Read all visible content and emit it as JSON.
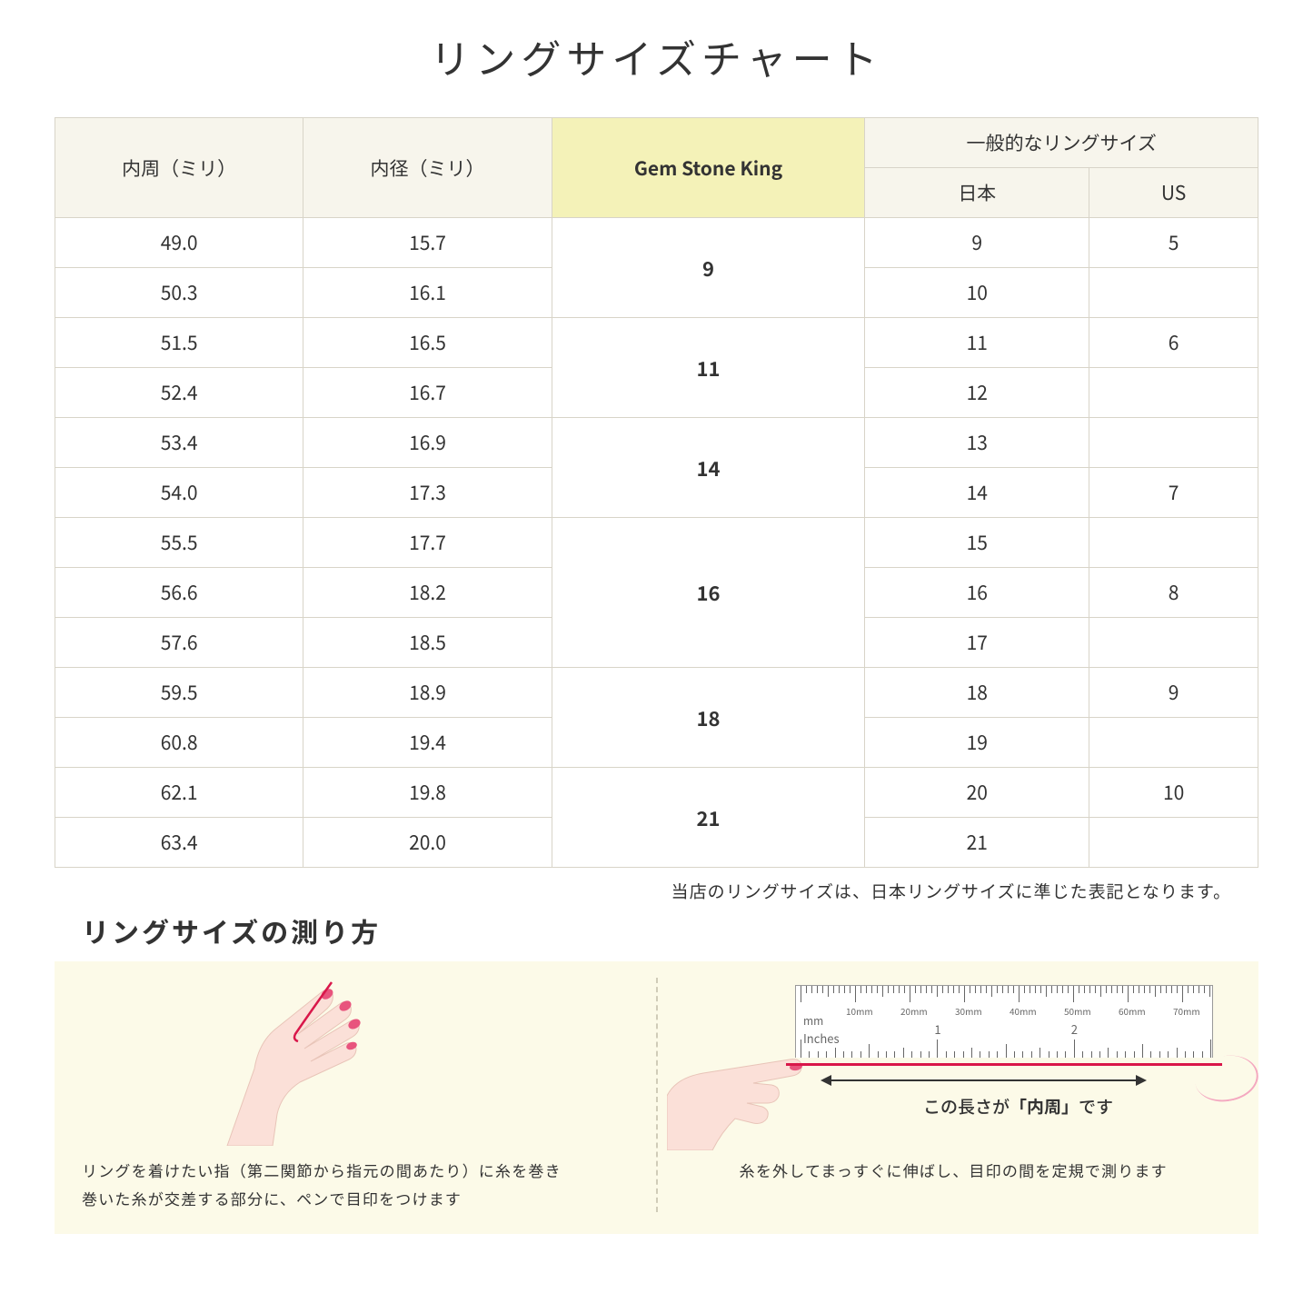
{
  "title": "リングサイズチャート",
  "table": {
    "headers": {
      "circumference": "内周（ミリ）",
      "diameter": "内径（ミリ）",
      "gsk": "Gem Stone King",
      "general": "一般的なリングサイズ",
      "jp": "日本",
      "us": "US"
    },
    "groups": [
      {
        "gsk": "9",
        "rows": [
          {
            "c": "49.0",
            "d": "15.7",
            "jp": "9",
            "us": "5"
          },
          {
            "c": "50.3",
            "d": "16.1",
            "jp": "10",
            "us": ""
          }
        ]
      },
      {
        "gsk": "11",
        "rows": [
          {
            "c": "51.5",
            "d": "16.5",
            "jp": "11",
            "us": "6"
          },
          {
            "c": "52.4",
            "d": "16.7",
            "jp": "12",
            "us": ""
          }
        ]
      },
      {
        "gsk": "14",
        "rows": [
          {
            "c": "53.4",
            "d": "16.9",
            "jp": "13",
            "us": ""
          },
          {
            "c": "54.0",
            "d": "17.3",
            "jp": "14",
            "us": "7"
          }
        ]
      },
      {
        "gsk": "16",
        "rows": [
          {
            "c": "55.5",
            "d": "17.7",
            "jp": "15",
            "us": ""
          },
          {
            "c": "56.6",
            "d": "18.2",
            "jp": "16",
            "us": "8"
          },
          {
            "c": "57.6",
            "d": "18.5",
            "jp": "17",
            "us": ""
          }
        ]
      },
      {
        "gsk": "18",
        "rows": [
          {
            "c": "59.5",
            "d": "18.9",
            "jp": "18",
            "us": "9"
          },
          {
            "c": "60.8",
            "d": "19.4",
            "jp": "19",
            "us": ""
          }
        ]
      },
      {
        "gsk": "21",
        "rows": [
          {
            "c": "62.1",
            "d": "19.8",
            "jp": "20",
            "us": "10"
          },
          {
            "c": "63.4",
            "d": "20.0",
            "jp": "21",
            "us": ""
          }
        ]
      }
    ]
  },
  "note": "当店のリングサイズは、日本リングサイズに準じた表記となります。",
  "subtitle": "リングサイズの測り方",
  "instructions": {
    "left": "リングを着けたい指（第二関節から指元の間あたり）に糸を巻き\n巻いた糸が交差する部分に、ペンで目印をつけます",
    "right": "糸を外してまっすぐに伸ばし、目印の間を定規で測ります",
    "arrow_label_pre": "この長さが",
    "arrow_label_em": "「内周」",
    "arrow_label_post": "です"
  },
  "ruler": {
    "mm_label": "mm",
    "in_label": "Inches",
    "mm_ticks": [
      "10mm",
      "20mm",
      "30mm",
      "40mm",
      "50mm",
      "60mm",
      "70mm"
    ],
    "in_ticks": [
      "1",
      "2"
    ]
  },
  "colors": {
    "header_bg": "#f7f5ec",
    "gsk_bg": "#f4f2b8",
    "border": "#d8d4c8",
    "panel_bg": "#fcfae8",
    "thread": "#d9174a",
    "skin": "#fbe0d8",
    "nail": "#e8547d"
  }
}
